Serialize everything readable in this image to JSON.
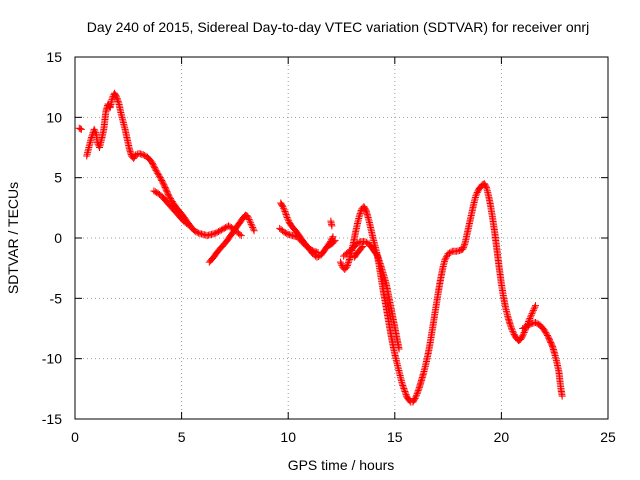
{
  "chart_data": {
    "type": "scatter",
    "title": "Day 240 of 2015, Sidereal Day-to-day VTEC variation (SDTVAR) for receiver onrj",
    "xlabel": "GPS time / hours",
    "ylabel": "SDTVAR / TECUs",
    "xlim": [
      0,
      25
    ],
    "ylim": [
      -15,
      15
    ],
    "xticks": [
      0,
      5,
      10,
      15,
      20,
      25
    ],
    "yticks": [
      -15,
      -10,
      -5,
      0,
      5,
      10,
      15
    ],
    "grid": true,
    "marker": "+",
    "color": "#ff0000",
    "series": [
      {
        "segments": [
          [
            [
              0.2,
              9.1
            ],
            [
              0.3,
              9.0
            ]
          ],
          [
            [
              0.55,
              6.8
            ],
            [
              0.65,
              7.5
            ],
            [
              0.75,
              8.2
            ],
            [
              0.9,
              9.0
            ],
            [
              1.0,
              8.6
            ],
            [
              1.05,
              7.9
            ],
            [
              1.15,
              7.5
            ],
            [
              1.25,
              8.2
            ],
            [
              1.35,
              9.0
            ],
            [
              1.45,
              10.5
            ],
            [
              1.55,
              11.1
            ],
            [
              1.65,
              10.8
            ],
            [
              1.75,
              11.6
            ],
            [
              1.85,
              12.0
            ],
            [
              1.95,
              11.7
            ],
            [
              2.05,
              11.2
            ],
            [
              2.15,
              10.4
            ],
            [
              2.25,
              9.7
            ],
            [
              2.35,
              9.0
            ],
            [
              2.45,
              8.2
            ],
            [
              2.55,
              7.4
            ],
            [
              2.65,
              6.8
            ],
            [
              2.75,
              6.6
            ],
            [
              2.85,
              6.9
            ],
            [
              3.0,
              7.0
            ],
            [
              3.2,
              6.9
            ],
            [
              3.4,
              6.7
            ],
            [
              3.6,
              6.3
            ],
            [
              3.8,
              5.6
            ],
            [
              4.0,
              5.0
            ],
            [
              4.2,
              4.3
            ],
            [
              4.4,
              3.5
            ],
            [
              4.6,
              2.9
            ],
            [
              4.8,
              2.4
            ],
            [
              5.0,
              2.0
            ],
            [
              5.2,
              1.5
            ],
            [
              5.4,
              1.0
            ],
            [
              5.6,
              0.6
            ],
            [
              5.8,
              0.4
            ],
            [
              6.0,
              0.3
            ],
            [
              6.2,
              0.2
            ],
            [
              6.4,
              0.3
            ],
            [
              6.6,
              0.4
            ],
            [
              6.8,
              0.6
            ],
            [
              7.0,
              0.8
            ],
            [
              7.2,
              1.0
            ],
            [
              7.4,
              0.8
            ],
            [
              7.6,
              0.5
            ],
            [
              7.8,
              0.2
            ]
          ],
          [
            [
              3.7,
              3.9
            ],
            [
              3.9,
              3.7
            ],
            [
              4.1,
              3.4
            ],
            [
              4.3,
              3.0
            ],
            [
              4.5,
              2.6
            ],
            [
              4.7,
              2.2
            ],
            [
              4.9,
              1.8
            ],
            [
              5.1,
              1.4
            ],
            [
              5.3,
              1.1
            ]
          ],
          [
            [
              6.3,
              -2.0
            ],
            [
              6.5,
              -1.6
            ],
            [
              6.7,
              -1.1
            ],
            [
              6.9,
              -0.7
            ],
            [
              7.1,
              -0.3
            ],
            [
              7.3,
              0.2
            ],
            [
              7.5,
              0.7
            ],
            [
              7.7,
              1.2
            ],
            [
              7.9,
              1.7
            ],
            [
              8.0,
              1.9
            ],
            [
              8.1,
              1.8
            ],
            [
              8.2,
              1.4
            ],
            [
              8.3,
              1.0
            ],
            [
              8.4,
              0.6
            ]
          ],
          [
            [
              9.65,
              2.9
            ],
            [
              9.75,
              2.6
            ],
            [
              9.85,
              2.2
            ],
            [
              9.95,
              1.7
            ],
            [
              10.05,
              1.3
            ],
            [
              10.15,
              1.0
            ],
            [
              10.35,
              0.6
            ],
            [
              10.55,
              0.1
            ],
            [
              10.75,
              -0.4
            ],
            [
              10.95,
              -0.8
            ],
            [
              11.15,
              -1.3
            ],
            [
              11.35,
              -1.6
            ],
            [
              11.55,
              -1.4
            ],
            [
              11.75,
              -0.9
            ],
            [
              11.95,
              -0.4
            ],
            [
              12.1,
              0.1
            ]
          ],
          [
            [
              9.6,
              0.8
            ],
            [
              9.8,
              0.5
            ],
            [
              10.0,
              0.3
            ],
            [
              10.2,
              0.2
            ],
            [
              10.4,
              0.1
            ],
            [
              10.6,
              -0.2
            ],
            [
              10.8,
              -0.6
            ],
            [
              11.0,
              -0.9
            ],
            [
              11.2,
              -1.1
            ],
            [
              11.4,
              -1.2
            ]
          ],
          [
            [
              11.95,
              -0.6
            ],
            [
              12.1,
              -0.4
            ],
            [
              12.2,
              -0.2
            ]
          ],
          [
            [
              12.0,
              1.4
            ],
            [
              12.05,
              1.0
            ]
          ],
          [
            [
              12.45,
              -2.0
            ],
            [
              12.55,
              -2.4
            ],
            [
              12.65,
              -2.6
            ],
            [
              12.75,
              -2.4
            ],
            [
              12.85,
              -1.9
            ],
            [
              12.95,
              -1.3
            ],
            [
              13.05,
              -0.5
            ],
            [
              13.15,
              0.4
            ],
            [
              13.25,
              1.2
            ],
            [
              13.35,
              1.9
            ],
            [
              13.45,
              2.4
            ],
            [
              13.55,
              2.6
            ],
            [
              13.65,
              2.3
            ],
            [
              13.75,
              1.7
            ],
            [
              13.85,
              1.0
            ],
            [
              13.95,
              0.2
            ],
            [
              14.05,
              -0.5
            ],
            [
              14.15,
              -1.2
            ],
            [
              14.25,
              -2.1
            ],
            [
              14.35,
              -3.2
            ],
            [
              14.45,
              -4.3
            ],
            [
              14.55,
              -5.3
            ],
            [
              14.65,
              -6.3
            ],
            [
              14.75,
              -7.3
            ],
            [
              14.85,
              -8.3
            ],
            [
              14.95,
              -9.2
            ],
            [
              15.05,
              -10.0
            ],
            [
              15.15,
              -10.7
            ],
            [
              15.25,
              -11.4
            ],
            [
              15.35,
              -12.1
            ],
            [
              15.45,
              -12.6
            ],
            [
              15.55,
              -13.1
            ],
            [
              15.65,
              -13.4
            ],
            [
              15.75,
              -13.6
            ],
            [
              15.85,
              -13.6
            ],
            [
              15.95,
              -13.3
            ],
            [
              16.05,
              -12.9
            ],
            [
              16.15,
              -12.4
            ],
            [
              16.25,
              -11.8
            ],
            [
              16.35,
              -11.2
            ],
            [
              16.45,
              -10.5
            ],
            [
              16.55,
              -9.7
            ],
            [
              16.65,
              -8.8
            ],
            [
              16.75,
              -7.7
            ],
            [
              16.85,
              -6.6
            ],
            [
              16.95,
              -5.5
            ],
            [
              17.05,
              -4.4
            ],
            [
              17.15,
              -3.4
            ],
            [
              17.25,
              -2.5
            ],
            [
              17.35,
              -1.8
            ],
            [
              17.5,
              -1.3
            ],
            [
              17.7,
              -1.1
            ],
            [
              17.9,
              -1.1
            ],
            [
              18.1,
              -1.0
            ],
            [
              18.2,
              -0.9
            ],
            [
              18.3,
              -0.4
            ],
            [
              18.4,
              0.4
            ],
            [
              18.5,
              1.2
            ],
            [
              18.6,
              2.0
            ],
            [
              18.7,
              2.8
            ],
            [
              18.8,
              3.5
            ],
            [
              18.9,
              3.9
            ],
            [
              19.0,
              4.2
            ],
            [
              19.1,
              4.4
            ],
            [
              19.2,
              4.5
            ],
            [
              19.3,
              4.2
            ],
            [
              19.4,
              3.5
            ],
            [
              19.5,
              2.6
            ],
            [
              19.6,
              1.5
            ],
            [
              19.7,
              0.3
            ],
            [
              19.8,
              -1.1
            ],
            [
              19.9,
              -2.5
            ],
            [
              20.0,
              -3.8
            ],
            [
              20.1,
              -4.9
            ],
            [
              20.2,
              -5.8
            ],
            [
              20.3,
              -6.5
            ],
            [
              20.4,
              -7.1
            ],
            [
              20.5,
              -7.6
            ],
            [
              20.6,
              -8.0
            ],
            [
              20.7,
              -8.3
            ],
            [
              20.8,
              -8.5
            ],
            [
              20.9,
              -8.4
            ],
            [
              21.0,
              -8.1
            ],
            [
              21.1,
              -7.7
            ],
            [
              21.2,
              -7.3
            ],
            [
              21.3,
              -6.8
            ],
            [
              21.4,
              -6.4
            ],
            [
              21.5,
              -6.0
            ],
            [
              21.6,
              -5.6
            ]
          ],
          [
            [
              12.6,
              -1.5
            ],
            [
              12.8,
              -1.2
            ],
            [
              13.0,
              -0.9
            ],
            [
              13.2,
              -0.5
            ],
            [
              13.4,
              -0.3
            ],
            [
              13.6,
              -0.3
            ],
            [
              13.8,
              -0.5
            ],
            [
              14.0,
              -1.0
            ],
            [
              14.2,
              -1.5
            ],
            [
              14.4,
              -2.6
            ],
            [
              14.6,
              -3.8
            ],
            [
              14.8,
              -5.6
            ],
            [
              15.0,
              -7.4
            ],
            [
              15.2,
              -9.2
            ]
          ],
          [
            [
              13.1,
              -1.6
            ],
            [
              13.3,
              -1.1
            ],
            [
              13.5,
              -0.7
            ]
          ],
          [
            [
              21.0,
              -7.5
            ],
            [
              21.2,
              -7.3
            ],
            [
              21.4,
              -7.1
            ],
            [
              21.6,
              -7.0
            ],
            [
              21.8,
              -7.2
            ],
            [
              22.0,
              -7.6
            ],
            [
              22.2,
              -8.2
            ],
            [
              22.4,
              -9.0
            ],
            [
              22.5,
              -9.6
            ],
            [
              22.6,
              -10.3
            ],
            [
              22.7,
              -11.1
            ],
            [
              22.75,
              -11.9
            ],
            [
              22.8,
              -12.6
            ],
            [
              22.85,
              -13.1
            ]
          ]
        ]
      }
    ]
  }
}
